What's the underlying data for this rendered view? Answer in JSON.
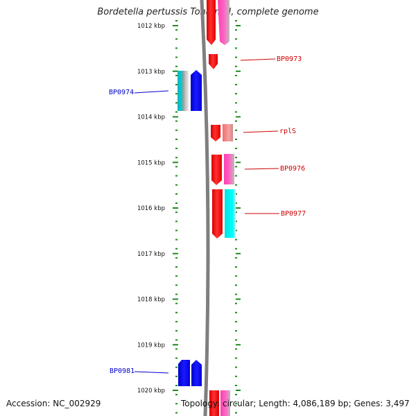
{
  "title": "Bordetella pertussis Tohama I, complete genome",
  "ticks": [
    "1012 kbp",
    "1013 kbp",
    "1014 kbp",
    "1015 kbp",
    "1016 kbp",
    "1017 kbp",
    "1018 kbp",
    "1019 kbp",
    "1020 kbp"
  ],
  "labels": {
    "bp0973": "BP0973",
    "bp0974": "BP0974",
    "rpls": "rplS",
    "bp0976": "BP0976",
    "bp0977": "BP0977",
    "bp0981": "BP0981"
  },
  "colors": {
    "forward_gene": "#ff0000",
    "reverse_gene": "#0000ff",
    "magenta_gene": "#ff33aa",
    "cyan_gene": "#00cccc",
    "forward_label": "#cc0000",
    "reverse_label": "#0000cc",
    "tick": "#1e8a1e",
    "backbone": "#7f7f7f"
  },
  "footer": {
    "accession": "Accession: NC_002929",
    "topology": "Topology: circular; Length: 4,086,189 bp; Genes: 3,497"
  }
}
